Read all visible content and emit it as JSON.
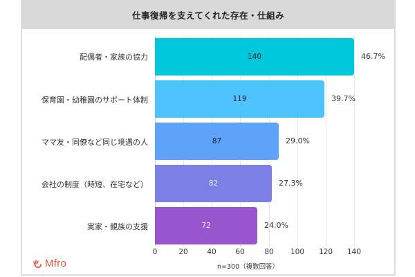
{
  "title": "仕事復帰を支えてくれた存在・仕組み",
  "note": "n=300（複数回答）",
  "logo": {
    "text": "Mfro",
    "icon": "hand-wave-icon",
    "color": "#f0513a"
  },
  "axis": {
    "ticks": [
      "0",
      "20",
      "40",
      "60",
      "80",
      "100",
      "120",
      "140"
    ]
  },
  "bars": [
    {
      "label": "配偶者・家族の協力",
      "value": "140",
      "pct": "46.7%",
      "color": "#00c8dc",
      "text_color": "#1a1a1a"
    },
    {
      "label": "保育園・幼稚園のサポート体制",
      "value": "119",
      "pct": "39.7%",
      "color": "#4dc3ff",
      "text_color": "#1a1a1a"
    },
    {
      "label": "ママ友・同僚など同じ境遇の人",
      "value": "87",
      "pct": "29.0%",
      "color": "#5ea3fa",
      "text_color": "#1a1a1a"
    },
    {
      "label": "会社の制度（時短、在宅など）",
      "value": "82",
      "pct": "27.3%",
      "color": "#7b7fe6",
      "text_color": "#e8e8ff"
    },
    {
      "label": "実家・親族の支援",
      "value": "72",
      "pct": "24.0%",
      "color": "#9955cc",
      "text_color": "#f0e6ff"
    }
  ],
  "chart_data": {
    "type": "bar",
    "orientation": "horizontal",
    "title": "仕事復帰を支えてくれた存在・仕組み",
    "categories": [
      "配偶者・家族の協力",
      "保育園・幼稚園のサポート体制",
      "ママ友・同僚など同じ境遇の人",
      "会社の制度（時短、在宅など）",
      "実家・親族の支援"
    ],
    "values": [
      140,
      119,
      87,
      82,
      72
    ],
    "percentages": [
      46.7,
      39.7,
      29.0,
      27.3,
      24.0
    ],
    "xlabel": "n=300（複数回答）",
    "ylabel": "",
    "xlim": [
      0,
      140
    ],
    "xticks": [
      0,
      20,
      40,
      60,
      80,
      100,
      120,
      140
    ],
    "grid": true,
    "legend": "none",
    "colors": [
      "#00c8dc",
      "#4dc3ff",
      "#5ea3fa",
      "#7b7fe6",
      "#9955cc"
    ]
  }
}
